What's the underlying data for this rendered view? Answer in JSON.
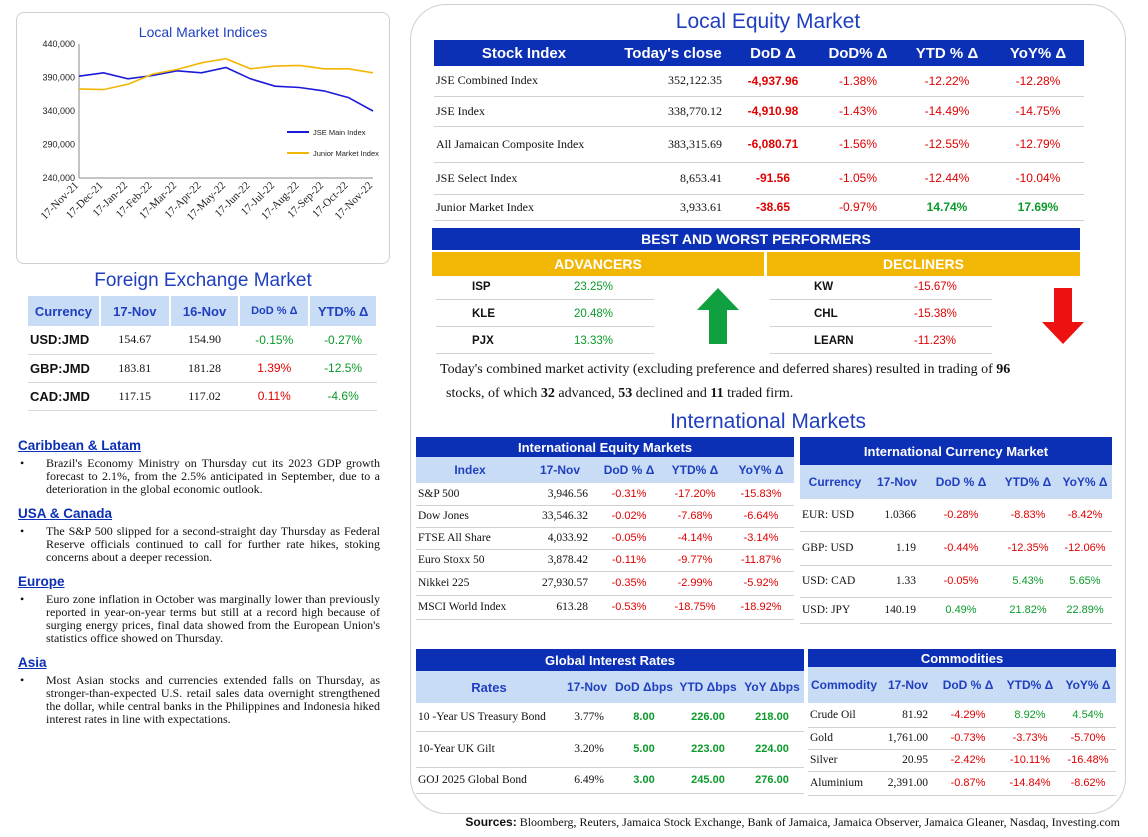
{
  "chart_data": {
    "type": "line",
    "title": "Local Market Indices",
    "x": [
      "17-Nov-21",
      "17-Dec-21",
      "17-Jan-22",
      "17-Feb-22",
      "17-Mar-22",
      "17-Apr-22",
      "17-May-22",
      "17-Jun-22",
      "17-Jul-22",
      "17-Aug-22",
      "17-Sep-22",
      "17-Oct-22",
      "17-Nov-22"
    ],
    "ylim": [
      240000,
      440000
    ],
    "yticks": [
      "440,000",
      "390,000",
      "340,000",
      "290,000",
      "240,000"
    ],
    "series": [
      {
        "name": "JSE Main Index",
        "color": "#1a1ad8",
        "values": [
          392000,
          397000,
          388000,
          393000,
          400000,
          397000,
          405000,
          388000,
          377000,
          375000,
          370000,
          360000,
          340000
        ]
      },
      {
        "name": "Junior Market Index",
        "color": "#f2b705",
        "values": [
          373000,
          372000,
          380000,
          395000,
          402000,
          412000,
          418000,
          403000,
          407000,
          408000,
          403000,
          403000,
          397000
        ]
      }
    ],
    "legend_position": "bottom-right"
  },
  "forex": {
    "title": "Foreign Exchange Market",
    "headers": [
      "Currency",
      "17-Nov",
      "16-Nov",
      "DoD % Δ",
      "YTD% Δ"
    ],
    "rows": [
      {
        "currency": "USD:JMD",
        "v1": "154.67",
        "v2": "154.90",
        "dod": "-0.15%",
        "dod_color": "pos",
        "ytd": "-0.27%",
        "ytd_color": "pos"
      },
      {
        "currency": "GBP:JMD",
        "v1": "183.81",
        "v2": "181.28",
        "dod": "1.39%",
        "dod_color": "neg",
        "ytd": "-12.5%",
        "ytd_color": "pos"
      },
      {
        "currency": "CAD:JMD",
        "v1": "117.15",
        "v2": "117.02",
        "dod": "0.11%",
        "dod_color": "neg",
        "ytd": "-4.6%",
        "ytd_color": "pos"
      }
    ]
  },
  "news": [
    {
      "heading": "Caribbean & Latam",
      "text": "Brazil's Economy Ministry on Thursday cut its 2023 GDP growth forecast to 2.1%, from the 2.5% anticipated in September, due to a deterioration in the global economic outlook."
    },
    {
      "heading": "USA & Canada",
      "text": "The S&P 500 slipped for a second-straight day Thursday as Federal Reserve officials continued to call for further rate hikes, stoking concerns about a deeper recession."
    },
    {
      "heading": "Europe",
      "text": "Euro zone inflation in October was marginally lower than previously reported in year-on-year terms but still at a record high because of surging energy prices, final data showed from the European Union's statistics office showed on Thursday."
    },
    {
      "heading": "Asia",
      "text": "Most Asian stocks and currencies extended falls on Thursday, as stronger-than-expected U.S. retail sales data overnight strengthened the dollar, while central banks in the Philippines and Indonesia hiked interest rates in line with expectations."
    }
  ],
  "equity": {
    "title": "Local Equity Market",
    "headers": [
      "Stock Index",
      "Today's close",
      "DoD  Δ",
      "DoD% Δ",
      "YTD % Δ",
      "YoY% Δ"
    ],
    "rows": [
      {
        "name": "JSE Combined Index",
        "close": "352,122.35",
        "dod": "-4,937.96",
        "dodp": "-1.38%",
        "ytd": "-12.22%",
        "ytd_c": "neg",
        "yoy": "-12.28%",
        "yoy_c": "neg"
      },
      {
        "name": "JSE Index",
        "close": "338,770.12",
        "dod": "-4,910.98",
        "dodp": "-1.43%",
        "ytd": "-14.49%",
        "ytd_c": "neg",
        "yoy": "-14.75%",
        "yoy_c": "neg"
      },
      {
        "name": "All Jamaican Composite Index",
        "close": "383,315.69",
        "dod": "-6,080.71",
        "dodp": "-1.56%",
        "ytd": "-12.55%",
        "ytd_c": "neg",
        "yoy": "-12.79%",
        "yoy_c": "neg"
      },
      {
        "name": "JSE Select Index",
        "close": "8,653.41",
        "dod": "-91.56",
        "dodp": "-1.05%",
        "ytd": "-12.44%",
        "ytd_c": "neg",
        "yoy": "-10.04%",
        "yoy_c": "neg"
      },
      {
        "name": "Junior Market Index",
        "close": "3,933.61",
        "dod": "-38.65",
        "dodp": "-0.97%",
        "ytd": "14.74%",
        "ytd_c": "pos",
        "yoy": "17.69%",
        "yoy_c": "pos"
      }
    ]
  },
  "best_worst": {
    "title": "BEST AND WORST PERFORMERS",
    "advancers_label": "ADVANCERS",
    "decliners_label": "DECLINERS",
    "advancers": [
      {
        "ticker": "ISP",
        "value": "23.25%"
      },
      {
        "ticker": "KLE",
        "value": "20.48%"
      },
      {
        "ticker": "PJX",
        "value": "13.33%"
      }
    ],
    "decliners": [
      {
        "ticker": "KW",
        "value": "-15.67%"
      },
      {
        "ticker": "CHL",
        "value": "-15.38%"
      },
      {
        "ticker": "LEARN",
        "value": "-11.23%"
      }
    ],
    "up_arrow_color": "#10a040",
    "down_arrow_color": "#ee1111"
  },
  "summary": {
    "p1": "Today's combined market activity (excluding preference and deferred shares) resulted in trading of ",
    "n_total": "96",
    "p2": "stocks, of which ",
    "n_adv": "32",
    "p3": " advanced, ",
    "n_dec": "53",
    "p4": " declined and ",
    "n_firm": "11",
    "p5": " traded firm."
  },
  "intl": {
    "title": "International Markets",
    "equity": {
      "title": "International Equity Markets",
      "headers": [
        "Index",
        "17-Nov",
        "DoD % Δ",
        "YTD% Δ",
        "YoY% Δ"
      ],
      "rows": [
        {
          "name": "S&P 500",
          "v": "3,946.56",
          "dod": "-0.31%",
          "dod_c": "neg",
          "ytd": "-17.20%",
          "ytd_c": "neg",
          "yoy": "-15.83%",
          "yoy_c": "neg"
        },
        {
          "name": "Dow Jones",
          "v": "33,546.32",
          "dod": "-0.02%",
          "dod_c": "neg",
          "ytd": "-7.68%",
          "ytd_c": "neg",
          "yoy": "-6.64%",
          "yoy_c": "neg"
        },
        {
          "name": "FTSE All Share",
          "v": "4,033.92",
          "dod": "-0.05%",
          "dod_c": "neg",
          "ytd": "-4.14%",
          "ytd_c": "neg",
          "yoy": "-3.14%",
          "yoy_c": "neg"
        },
        {
          "name": "Euro Stoxx 50",
          "v": "3,878.42",
          "dod": "-0.11%",
          "dod_c": "neg",
          "ytd": "-9.77%",
          "ytd_c": "neg",
          "yoy": "-11.87%",
          "yoy_c": "neg"
        },
        {
          "name": "Nikkei 225",
          "v": "27,930.57",
          "dod": "-0.35%",
          "dod_c": "neg",
          "ytd": "-2.99%",
          "ytd_c": "neg",
          "yoy": "-5.92%",
          "yoy_c": "neg"
        },
        {
          "name": "MSCI World Index",
          "v": "613.28",
          "dod": "-0.53%",
          "dod_c": "neg",
          "ytd": "-18.75%",
          "ytd_c": "neg",
          "yoy": "-18.92%",
          "yoy_c": "neg"
        }
      ]
    },
    "currency": {
      "title": "International Currency Market",
      "headers": [
        "Currency",
        "17-Nov",
        "DoD % Δ",
        "YTD% Δ",
        "YoY% Δ"
      ],
      "rows": [
        {
          "name": "EUR: USD",
          "v": "1.0366",
          "dod": "-0.28%",
          "dod_c": "neg",
          "ytd": "-8.83%",
          "ytd_c": "neg",
          "yoy": "-8.42%",
          "yoy_c": "neg"
        },
        {
          "name": "GBP: USD",
          "v": "1.19",
          "dod": "-0.44%",
          "dod_c": "neg",
          "ytd": "-12.35%",
          "ytd_c": "neg",
          "yoy": "-12.06%",
          "yoy_c": "neg"
        },
        {
          "name": "USD: CAD",
          "v": "1.33",
          "dod": "-0.05%",
          "dod_c": "neg",
          "ytd": "5.43%",
          "ytd_c": "pos",
          "yoy": "5.65%",
          "yoy_c": "pos"
        },
        {
          "name": "USD: JPY",
          "v": "140.19",
          "dod": "0.49%",
          "dod_c": "pos",
          "ytd": "21.82%",
          "ytd_c": "pos",
          "yoy": "22.89%",
          "yoy_c": "pos"
        }
      ]
    },
    "rates": {
      "title": "Global Interest Rates",
      "headers": [
        "Rates",
        "17-Nov",
        "DoD Δbps",
        "YTD Δbps",
        "YoY Δbps"
      ],
      "rows": [
        {
          "name": "10 -Year US Treasury Bond",
          "v": "3.77%",
          "dod": "8.00",
          "ytd": "226.00",
          "yoy": "218.00"
        },
        {
          "name": "10-Year UK Gilt",
          "v": "3.20%",
          "dod": "5.00",
          "ytd": "223.00",
          "yoy": "224.00"
        },
        {
          "name": "GOJ 2025 Global Bond",
          "v": "6.49%",
          "dod": "3.00",
          "ytd": "245.00",
          "yoy": "276.00"
        }
      ]
    },
    "commodities": {
      "title": "Commodities",
      "headers": [
        "Commodity",
        "17-Nov",
        "DoD % Δ",
        "YTD% Δ",
        "YoY% Δ"
      ],
      "rows": [
        {
          "name": "Crude Oil",
          "v": "81.92",
          "dod": "-4.29%",
          "dod_c": "neg",
          "ytd": "8.92%",
          "ytd_c": "pos",
          "yoy": "4.54%",
          "yoy_c": "pos"
        },
        {
          "name": "Gold",
          "v": "1,761.00",
          "dod": "-0.73%",
          "dod_c": "neg",
          "ytd": "-3.73%",
          "ytd_c": "neg",
          "yoy": "-5.70%",
          "yoy_c": "neg"
        },
        {
          "name": "Silver",
          "v": "20.95",
          "dod": "-2.42%",
          "dod_c": "neg",
          "ytd": "-10.11%",
          "ytd_c": "neg",
          "yoy": "-16.48%",
          "yoy_c": "neg"
        },
        {
          "name": "Aluminium",
          "v": "2,391.00",
          "dod": "-0.87%",
          "dod_c": "neg",
          "ytd": "-14.84%",
          "ytd_c": "neg",
          "yoy": "-8.62%",
          "yoy_c": "neg"
        }
      ]
    }
  },
  "sources": {
    "label": "Sources:",
    "text": " Bloomberg, Reuters, Jamaica Stock Exchange, Bank of Jamaica, Jamaica Observer, Jamaica Gleaner, Nasdaq, Investing.com"
  }
}
